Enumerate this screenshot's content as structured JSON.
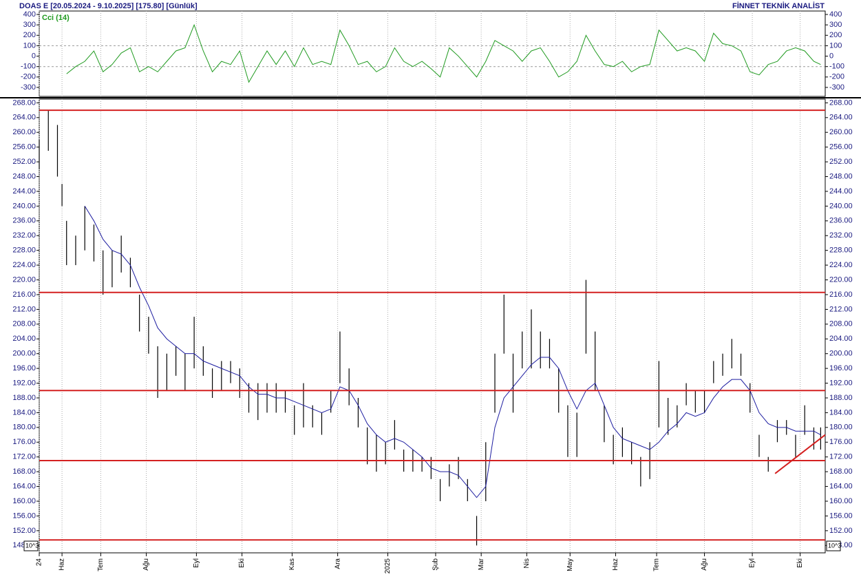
{
  "header": {
    "title": "DOAS  E  [20.05.2024 - 9.10.2025]  [175.80]  [Günlük]",
    "brand": "FİNNET TEKNİK ANALİST"
  },
  "chart_data": [
    {
      "type": "line",
      "x": [
        0,
        4,
        8,
        10,
        12,
        16,
        20,
        24,
        28,
        32,
        36,
        40,
        44,
        48,
        52,
        56,
        60,
        64,
        68,
        72,
        76,
        80,
        84,
        88,
        92,
        96,
        100,
        104,
        108,
        112,
        116,
        120,
        124,
        128,
        132,
        136,
        140,
        144,
        148,
        152,
        156,
        160,
        164,
        168,
        172,
        176,
        180,
        184,
        188,
        192,
        196,
        200,
        204,
        208,
        212,
        216,
        220,
        224,
        228,
        232,
        236,
        240,
        244,
        248,
        252,
        256,
        260,
        264,
        268,
        272,
        276,
        280,
        284,
        288,
        292,
        296,
        300,
        304,
        308,
        312,
        316,
        320,
        324,
        328,
        332,
        336,
        340,
        343
      ],
      "series": [
        {
          "name": "Cci (14)",
          "color": "#1f9a1f",
          "values": [
            null,
            null,
            null,
            null,
            -170,
            -100,
            -50,
            50,
            -150,
            -80,
            30,
            80,
            -150,
            -100,
            -150,
            -50,
            50,
            80,
            300,
            50,
            -150,
            -50,
            -80,
            50,
            -250,
            -100,
            50,
            -80,
            50,
            -100,
            80,
            -80,
            -50,
            -80,
            250,
            100,
            -80,
            -50,
            -150,
            -100,
            80,
            -50,
            -100,
            -50,
            -120,
            -200,
            80,
            0,
            -100,
            -200,
            -50,
            150,
            100,
            50,
            -50,
            50,
            80,
            -50,
            -200,
            -150,
            -50,
            200,
            50,
            -80,
            -100,
            -50,
            -150,
            -100,
            -80,
            250,
            150,
            50,
            80,
            50,
            -50,
            220,
            120,
            100,
            50,
            -150,
            -180,
            -80,
            -50,
            50,
            80,
            50,
            -50,
            -80
          ]
        }
      ],
      "xlim": [
        0,
        345
      ],
      "ylim": [
        -386,
        433
      ],
      "yticks": [
        400,
        300,
        200,
        100,
        0,
        -100,
        -200,
        -300
      ],
      "ref_lines": [
        100,
        -100
      ]
    },
    {
      "type": "ohlc",
      "x": [
        0,
        4,
        8,
        10,
        12,
        16,
        20,
        24,
        28,
        32,
        36,
        40,
        44,
        48,
        52,
        56,
        60,
        64,
        68,
        72,
        76,
        80,
        84,
        88,
        92,
        96,
        100,
        104,
        108,
        112,
        116,
        120,
        124,
        128,
        132,
        136,
        140,
        144,
        148,
        152,
        156,
        160,
        164,
        168,
        172,
        176,
        180,
        184,
        188,
        192,
        196,
        200,
        204,
        208,
        212,
        216,
        220,
        224,
        228,
        232,
        236,
        240,
        244,
        248,
        252,
        256,
        260,
        264,
        268,
        272,
        276,
        280,
        284,
        288,
        292,
        296,
        300,
        304,
        308,
        312,
        316,
        320,
        324,
        328,
        332,
        336,
        340,
        343
      ],
      "low": [
        250,
        255,
        248,
        240,
        224,
        224,
        228,
        225,
        216,
        218,
        222,
        218,
        206,
        200,
        188,
        190,
        194,
        190,
        196,
        194,
        188,
        190,
        192,
        188,
        184,
        182,
        184,
        184,
        184,
        178,
        180,
        180,
        178,
        184,
        192,
        186,
        180,
        170,
        168,
        170,
        174,
        168,
        168,
        168,
        166,
        160,
        164,
        166,
        160,
        148,
        160,
        184,
        200,
        184,
        196,
        196,
        196,
        196,
        184,
        172,
        172,
        200,
        190,
        176,
        170,
        172,
        170,
        164,
        166,
        180,
        178,
        180,
        186,
        184,
        184,
        192,
        194,
        196,
        194,
        184,
        172,
        168,
        176,
        178,
        172,
        178,
        174,
        174
      ],
      "high": [
        258,
        266,
        262,
        246,
        236,
        232,
        240,
        235,
        228,
        228,
        232,
        226,
        216,
        210,
        202,
        200,
        202,
        200,
        210,
        202,
        196,
        198,
        198,
        196,
        192,
        192,
        192,
        192,
        190,
        186,
        192,
        186,
        184,
        190,
        206,
        196,
        188,
        180,
        178,
        176,
        182,
        174,
        174,
        172,
        172,
        166,
        170,
        172,
        166,
        156,
        176,
        200,
        216,
        200,
        206,
        212,
        206,
        204,
        196,
        186,
        184,
        220,
        206,
        186,
        178,
        180,
        176,
        172,
        176,
        198,
        188,
        186,
        192,
        190,
        190,
        198,
        200,
        204,
        200,
        192,
        178,
        172,
        182,
        182,
        178,
        186,
        180,
        180
      ],
      "color": "#000000",
      "ma": {
        "color": "#1c1ca0",
        "values": [
          null,
          null,
          null,
          null,
          null,
          null,
          240,
          236,
          231,
          228,
          227,
          224,
          218,
          213,
          207,
          204,
          202,
          200,
          200,
          198,
          197,
          196,
          195,
          194,
          191,
          189,
          189,
          188,
          188,
          187,
          186,
          185,
          184,
          185,
          191,
          190,
          186,
          181,
          178,
          176,
          177,
          176,
          174,
          172,
          169,
          168,
          168,
          167,
          164,
          161,
          164,
          180,
          188,
          191,
          194,
          197,
          199,
          199,
          196,
          190,
          185,
          190,
          192,
          186,
          180,
          177,
          176,
          175,
          174,
          176,
          179,
          181,
          184,
          183,
          184,
          188,
          191,
          193,
          193,
          190,
          184,
          181,
          180,
          180,
          179,
          179,
          179,
          178
        ]
      },
      "levels": [
        266,
        216.6,
        190,
        171,
        149.5
      ],
      "level_color": "#d42020",
      "trend": {
        "x": [
          323,
          345
        ],
        "values": [
          167.5,
          178
        ]
      },
      "xlim": [
        0,
        345
      ],
      "ylim": [
        146,
        269
      ],
      "yticks": [
        {
          "value": 148,
          "label": "148.00"
        },
        {
          "value": 152,
          "label": "152.00"
        },
        {
          "value": 156,
          "label": "156.00"
        },
        {
          "value": 160,
          "label": "160.00"
        },
        {
          "value": 164,
          "label": "164.00"
        },
        {
          "value": 168,
          "label": "168.00"
        },
        {
          "value": 172,
          "label": "172.00"
        },
        {
          "value": 176,
          "label": "176.00"
        },
        {
          "value": 180,
          "label": "180.00"
        },
        {
          "value": 184,
          "label": "184.00"
        },
        {
          "value": 188,
          "label": "188.00"
        },
        {
          "value": 192,
          "label": "192.00"
        },
        {
          "value": 196,
          "label": "196.00"
        },
        {
          "value": 200,
          "label": "200.00"
        },
        {
          "value": 204,
          "label": "204.00"
        },
        {
          "value": 208,
          "label": "208.00"
        },
        {
          "value": 212,
          "label": "212.00"
        },
        {
          "value": 216,
          "label": "216.00"
        },
        {
          "value": 220,
          "label": "220.00"
        },
        {
          "value": 224,
          "label": "224.00"
        },
        {
          "value": 228,
          "label": "228.00"
        },
        {
          "value": 232,
          "label": "232.00"
        },
        {
          "value": 236,
          "label": "236.00"
        },
        {
          "value": 240,
          "label": "240.00"
        },
        {
          "value": 244,
          "label": "244.00"
        },
        {
          "value": 248,
          "label": "248.00"
        },
        {
          "value": 252,
          "label": "252.00"
        },
        {
          "value": 256,
          "label": "256.00"
        },
        {
          "value": 260,
          "label": "260.00"
        },
        {
          "value": 264,
          "label": "264.00"
        },
        {
          "value": 268,
          "label": "268.00"
        }
      ],
      "xticks": [
        {
          "value": 0,
          "label": "24"
        },
        {
          "value": 10,
          "label": "Haz"
        },
        {
          "value": 27,
          "label": "Tem"
        },
        {
          "value": 47,
          "label": "Ağu"
        },
        {
          "value": 69,
          "label": "Eyl"
        },
        {
          "value": 89,
          "label": "Eki"
        },
        {
          "value": 111,
          "label": "Kas"
        },
        {
          "value": 131,
          "label": "Ara"
        },
        {
          "value": 153,
          "label": "2025"
        },
        {
          "value": 174,
          "label": "Şub"
        },
        {
          "value": 194,
          "label": "Mar"
        },
        {
          "value": 214,
          "label": "Nis"
        },
        {
          "value": 233,
          "label": "May"
        },
        {
          "value": 253,
          "label": "Haz"
        },
        {
          "value": 271,
          "label": "Tem"
        },
        {
          "value": 292,
          "label": "Ağu"
        },
        {
          "value": 313,
          "label": "Eyl"
        },
        {
          "value": 334,
          "label": "Eki"
        }
      ],
      "scale_note": "10^3"
    }
  ]
}
